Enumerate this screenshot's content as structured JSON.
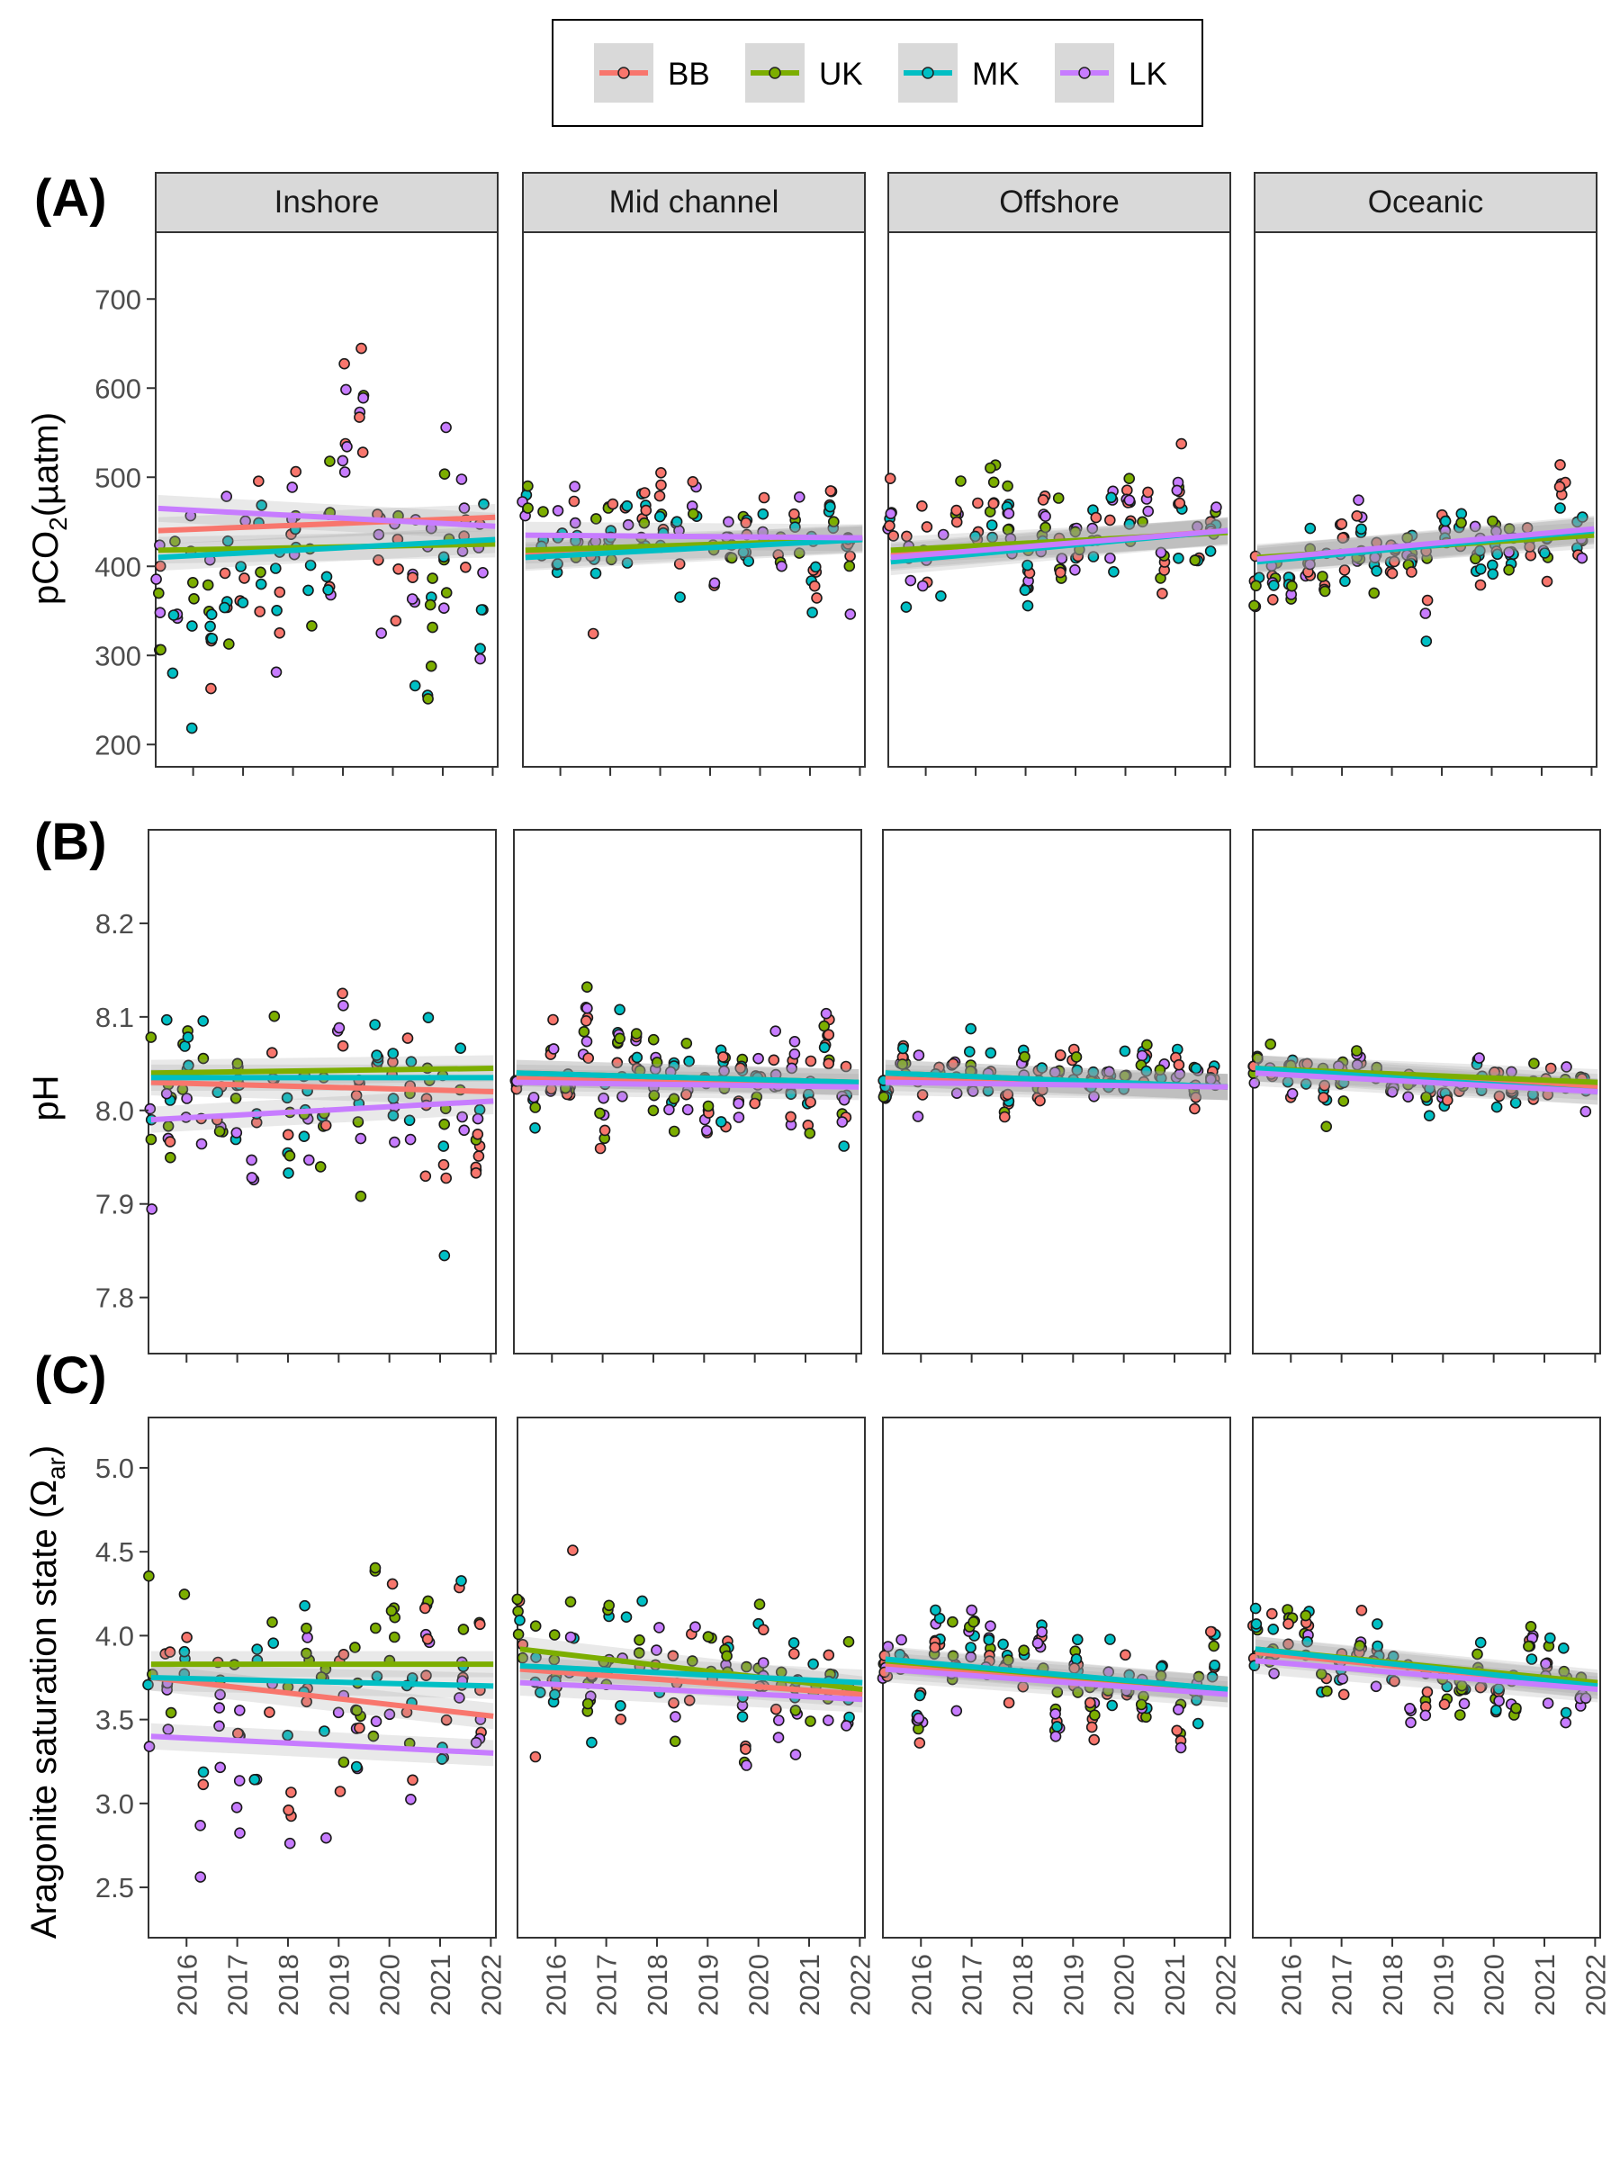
{
  "legend": {
    "items": [
      {
        "label": "BB",
        "color": "#F8766D"
      },
      {
        "label": "UK",
        "color": "#7CAE00"
      },
      {
        "label": "MK",
        "color": "#00BFC4"
      },
      {
        "label": "LK",
        "color": "#C77CFF"
      }
    ]
  },
  "panels": [
    {
      "label": "(A)",
      "ylabel_main": "pCO",
      "ylabel_sub": "2",
      "ylabel_unit": "(µatm)"
    },
    {
      "label": "(B)",
      "ylabel_main": "pH"
    },
    {
      "label": "(C)",
      "ylabel_main": "Aragonite saturation state  (Ω",
      "ylabel_sub": "ar",
      "ylabel_tail": ")"
    }
  ],
  "facets": [
    "Inshore",
    "Mid channel",
    "Offshore",
    "Oceanic"
  ],
  "chart_data": [
    {
      "type": "scatter",
      "panel": "A",
      "ylabel": "pCO2 (µatm)",
      "ylim": [
        175,
        775
      ],
      "yticks": [
        200,
        300,
        400,
        500,
        600,
        700
      ],
      "xlim": [
        2015.25,
        2022.1
      ],
      "xticks": [
        2016,
        2017,
        2018,
        2019,
        2020,
        2021,
        2022
      ],
      "trend_lines": {
        "Inshore": {
          "BB": [
            440,
            455
          ],
          "UK": [
            418,
            425
          ],
          "MK": [
            410,
            430
          ],
          "LK": [
            465,
            445
          ]
        },
        "Mid channel": {
          "BB": [
            412,
            432
          ],
          "UK": [
            418,
            430
          ],
          "MK": [
            410,
            430
          ],
          "LK": [
            435,
            432
          ]
        },
        "Offshore": {
          "BB": [
            412,
            440
          ],
          "UK": [
            418,
            438
          ],
          "MK": [
            405,
            440
          ],
          "LK": [
            410,
            440
          ]
        },
        "Oceanic": {
          "BB": [
            408,
            440
          ],
          "UK": [
            410,
            435
          ],
          "MK": [
            405,
            440
          ],
          "LK": [
            408,
            442
          ]
        }
      }
    },
    {
      "type": "scatter",
      "panel": "B",
      "ylabel": "pH",
      "ylim": [
        7.74,
        8.3
      ],
      "yticks": [
        7.8,
        7.9,
        8.0,
        8.1,
        8.2
      ],
      "xlim": [
        2015.25,
        2022.1
      ],
      "xticks": [
        2016,
        2017,
        2018,
        2019,
        2020,
        2021,
        2022
      ],
      "trend_lines": {
        "Inshore": {
          "BB": [
            8.03,
            8.02
          ],
          "UK": [
            8.04,
            8.045
          ],
          "MK": [
            8.035,
            8.035
          ],
          "LK": [
            7.99,
            8.01
          ]
        },
        "Mid channel": {
          "BB": [
            8.035,
            8.03
          ],
          "UK": [
            8.04,
            8.03
          ],
          "MK": [
            8.04,
            8.03
          ],
          "LK": [
            8.03,
            8.025
          ]
        },
        "Offshore": {
          "BB": [
            8.035,
            8.025
          ],
          "UK": [
            8.04,
            8.025
          ],
          "MK": [
            8.04,
            8.025
          ],
          "LK": [
            8.03,
            8.025
          ]
        },
        "Oceanic": {
          "BB": [
            8.045,
            8.025
          ],
          "UK": [
            8.045,
            8.03
          ],
          "MK": [
            8.045,
            8.02
          ],
          "LK": [
            8.04,
            8.02
          ]
        }
      }
    },
    {
      "type": "scatter",
      "panel": "C",
      "ylabel": "Aragonite saturation state (Ωar)",
      "ylim": [
        2.2,
        5.3
      ],
      "yticks": [
        2.5,
        3.0,
        3.5,
        4.0,
        4.5,
        5.0
      ],
      "xlim": [
        2015.25,
        2022.1
      ],
      "xticks": [
        2016,
        2017,
        2018,
        2019,
        2020,
        2021,
        2022
      ],
      "trend_lines": {
        "Inshore": {
          "BB": [
            3.75,
            3.52
          ],
          "UK": [
            3.83,
            3.83
          ],
          "MK": [
            3.75,
            3.7
          ],
          "LK": [
            3.4,
            3.3
          ]
        },
        "Mid channel": {
          "BB": [
            3.8,
            3.65
          ],
          "UK": [
            3.92,
            3.68
          ],
          "MK": [
            3.82,
            3.72
          ],
          "LK": [
            3.72,
            3.62
          ]
        },
        "Offshore": {
          "BB": [
            3.82,
            3.68
          ],
          "UK": [
            3.85,
            3.68
          ],
          "MK": [
            3.86,
            3.68
          ],
          "LK": [
            3.8,
            3.65
          ]
        },
        "Oceanic": {
          "BB": [
            3.9,
            3.7
          ],
          "UK": [
            3.92,
            3.72
          ],
          "MK": [
            3.92,
            3.7
          ],
          "LK": [
            3.85,
            3.68
          ]
        }
      }
    }
  ]
}
